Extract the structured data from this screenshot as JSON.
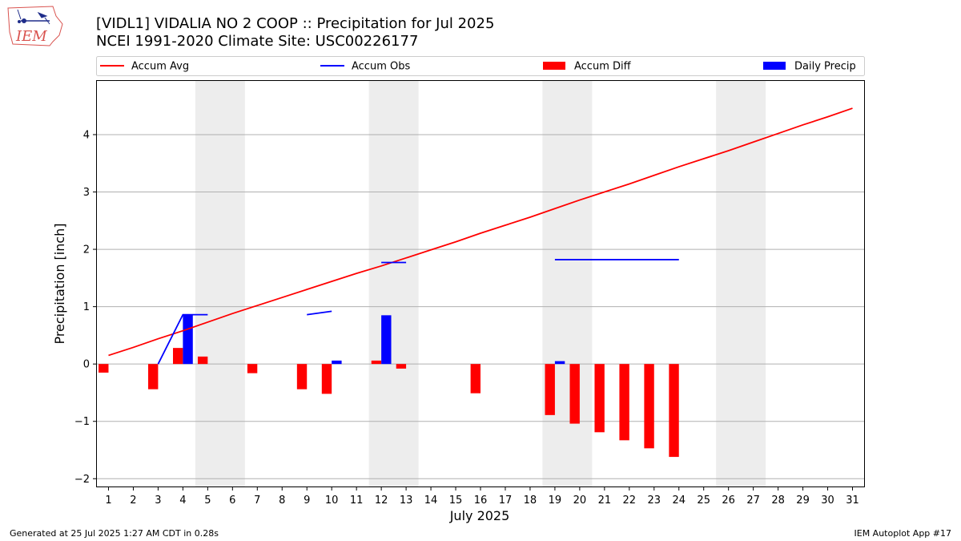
{
  "logo": {
    "text": "IEM",
    "name": "iem-logo"
  },
  "title_line1": "[VIDL1] VIDALIA NO 2 COOP :: Precipitation for Jul 2025",
  "title_line2": "NCEI 1991-2020 Climate Site: USC00226177",
  "footer_left": "Generated at 25 Jul 2025 1:27 AM CDT in 0.28s",
  "footer_right": "IEM Autoplot App #17",
  "chart_data": {
    "type": "bar",
    "xlabel": "July 2025",
    "ylabel": "Precipitation [inch]",
    "xlim": [
      0.5,
      31.5
    ],
    "ylim": [
      -2.15,
      4.95
    ],
    "yticks": [
      -2,
      -1,
      0,
      1,
      2,
      3,
      4
    ],
    "grid": "horizontal",
    "legend_placement": "top",
    "weekend_shading": [
      [
        4.5,
        6.5
      ],
      [
        11.5,
        13.5
      ],
      [
        18.5,
        20.5
      ],
      [
        25.5,
        27.5
      ]
    ],
    "days": [
      1,
      2,
      3,
      4,
      5,
      6,
      7,
      8,
      9,
      10,
      11,
      12,
      13,
      14,
      15,
      16,
      17,
      18,
      19,
      20,
      21,
      22,
      23,
      24,
      25,
      26,
      27,
      28,
      29,
      30,
      31
    ],
    "legend": [
      {
        "label": "Accum Avg",
        "kind": "line",
        "color": "#ff0000"
      },
      {
        "label": "Accum Obs",
        "kind": "line",
        "color": "#0000ff"
      },
      {
        "label": "Accum Diff",
        "kind": "bar",
        "color": "#ff0000"
      },
      {
        "label": "Daily Precip",
        "kind": "bar",
        "color": "#0000ff"
      }
    ],
    "accum_avg": [
      0.15,
      0.29,
      0.44,
      0.58,
      0.73,
      0.88,
      1.02,
      1.16,
      1.3,
      1.44,
      1.58,
      1.71,
      1.85,
      1.99,
      2.13,
      2.28,
      2.42,
      2.56,
      2.71,
      2.86,
      3.0,
      3.14,
      3.29,
      3.44,
      3.58,
      3.72,
      3.87,
      4.02,
      4.17,
      4.31,
      4.46
    ],
    "accum_obs_segments": [
      [
        [
          3,
          0.0
        ],
        [
          4,
          0.86
        ],
        [
          5,
          0.86
        ]
      ],
      [
        [
          9,
          0.86
        ],
        [
          10,
          0.92
        ]
      ],
      [
        [
          12,
          1.77
        ],
        [
          13,
          1.77
        ]
      ],
      [
        [
          19,
          1.82
        ],
        [
          20,
          1.82
        ],
        [
          21,
          1.82
        ],
        [
          22,
          1.82
        ],
        [
          23,
          1.82
        ],
        [
          24,
          1.82
        ]
      ]
    ],
    "accum_diff": [
      {
        "day": 1,
        "value": -0.15
      },
      {
        "day": 3,
        "value": -0.44
      },
      {
        "day": 4,
        "value": 0.28
      },
      {
        "day": 5,
        "value": 0.13
      },
      {
        "day": 7,
        "value": -0.16
      },
      {
        "day": 9,
        "value": -0.44
      },
      {
        "day": 10,
        "value": -0.52
      },
      {
        "day": 12,
        "value": 0.06
      },
      {
        "day": 13,
        "value": -0.08
      },
      {
        "day": 16,
        "value": -0.51
      },
      {
        "day": 19,
        "value": -0.89
      },
      {
        "day": 20,
        "value": -1.04
      },
      {
        "day": 21,
        "value": -1.19
      },
      {
        "day": 22,
        "value": -1.33
      },
      {
        "day": 23,
        "value": -1.47
      },
      {
        "day": 24,
        "value": -1.62
      }
    ],
    "daily_precip": [
      {
        "day": 4,
        "value": 0.86
      },
      {
        "day": 10,
        "value": 0.06
      },
      {
        "day": 12,
        "value": 0.85
      },
      {
        "day": 19,
        "value": 0.05
      }
    ]
  }
}
